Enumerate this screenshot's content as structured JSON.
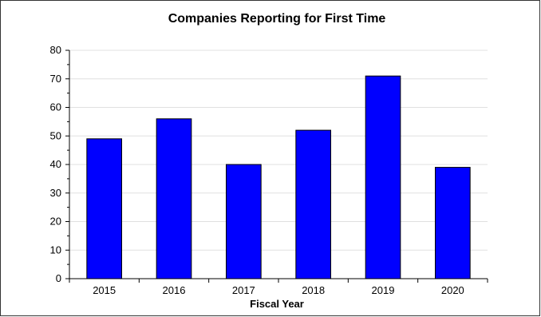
{
  "chart_data": {
    "type": "bar",
    "title": "Companies Reporting for First Time",
    "xlabel": "Fiscal Year",
    "ylabel": "",
    "categories": [
      "2015",
      "2016",
      "2017",
      "2018",
      "2019",
      "2020"
    ],
    "values": [
      49,
      56,
      40,
      52,
      71,
      39
    ],
    "ylim": [
      0,
      80
    ],
    "yticks": [
      0,
      10,
      20,
      30,
      40,
      50,
      60,
      70,
      80
    ],
    "grid": true,
    "legend": "none",
    "bar_color": "#0000ff",
    "bar_edge_color": "#000000",
    "grid_color": "#e0e0e0"
  }
}
